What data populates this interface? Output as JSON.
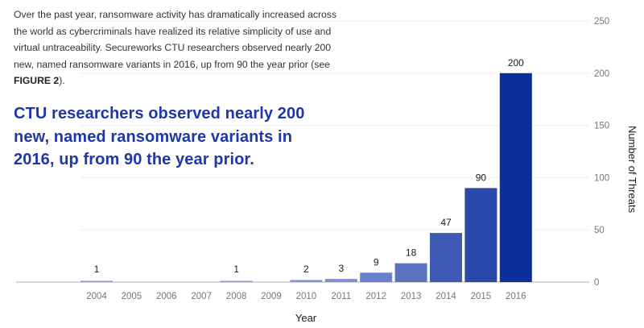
{
  "intro": {
    "text": "Over the past year, ransomware activity has dramatically increased across the world as cybercriminals have realized its relative simplicity of use and virtual untraceability. Secureworks CTU researchers observed nearly 200 new, named ransomware variants in 2016, up from 90 the year prior (see ",
    "figure_ref": "FIGURE 2",
    "text_end": ")."
  },
  "callout": {
    "text": "CTU researchers observed nearly 200 new, named ransomware variants in 2016, up from 90 the year prior."
  },
  "colors": {
    "callout": "#1f37a8",
    "bar_light": "#8c9fd8",
    "bar_dark": "#0a2e9c"
  },
  "chart_data": {
    "type": "bar",
    "title": "",
    "xlabel": "Year",
    "ylabel": "Number of Threats",
    "categories": [
      "2004",
      "2005",
      "2006",
      "2007",
      "2008",
      "2009",
      "2010",
      "2011",
      "2012",
      "2013",
      "2014",
      "2015",
      "2016"
    ],
    "values": [
      1,
      0,
      0,
      0,
      1,
      0,
      2,
      3,
      9,
      18,
      47,
      90,
      200
    ],
    "data_labels": [
      "1",
      "",
      "",
      "",
      "1",
      "",
      "2",
      "3",
      "9",
      "18",
      "47",
      "90",
      "200"
    ],
    "ylim": [
      0,
      250
    ],
    "yticks": [
      0,
      50,
      100,
      150,
      200,
      250
    ],
    "ytick_side": "right",
    "grid": true,
    "legend": "none"
  }
}
